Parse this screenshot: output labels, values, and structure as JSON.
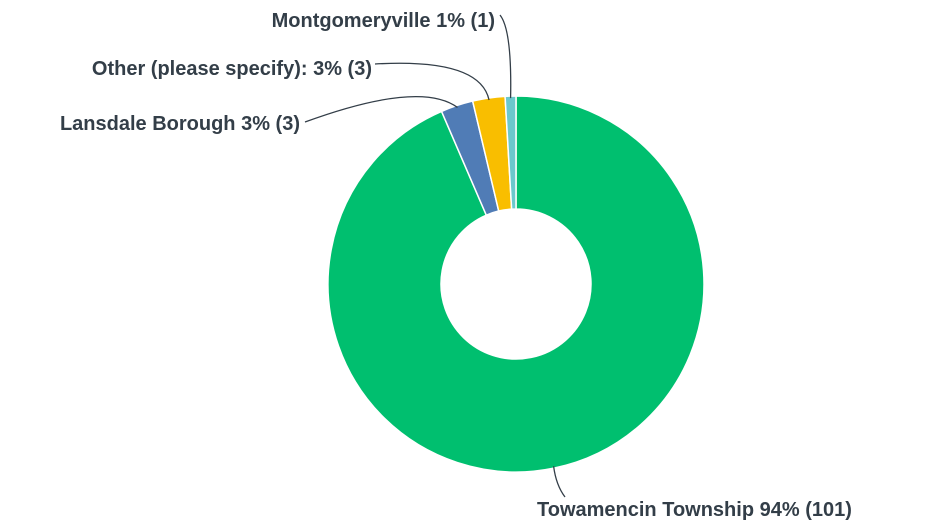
{
  "chart_data": {
    "type": "donut",
    "categories": [
      "Towamencin Township",
      "Lansdale Borough",
      "Other (please specify):",
      "Montgomeryville"
    ],
    "values": [
      101,
      3,
      3,
      1
    ],
    "value_labels": [
      "94% (101)",
      "3% (3)",
      "3% (3)",
      "1% (1)"
    ],
    "colors": [
      "#00bf6f",
      "#507cb6",
      "#f9be00",
      "#6bc8cd"
    ]
  }
}
